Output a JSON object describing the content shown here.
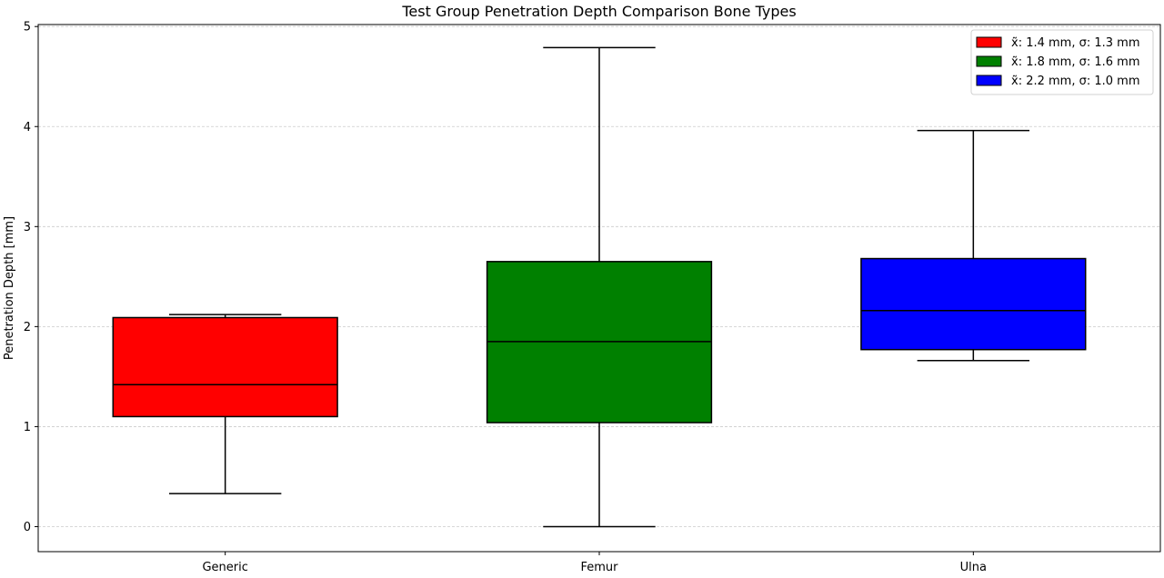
{
  "chart_data": {
    "type": "box",
    "title": "Test Group Penetration Depth Comparison Bone Types",
    "xlabel": "",
    "ylabel": "Penetration Depth [mm]",
    "ylim": [
      -0.25,
      5.02
    ],
    "yticks": [
      0,
      1,
      2,
      3,
      4,
      5
    ],
    "grid": "horizontal dashed",
    "legend_position": "top-right",
    "categories": [
      "Generic",
      "Femur",
      "Ulna"
    ],
    "boxes": [
      {
        "category": "Generic",
        "whisker_low": 0.33,
        "q1": 1.1,
        "median": 1.42,
        "q3": 2.09,
        "whisker_high": 2.12,
        "color": "#ff0000",
        "legend": "x̃: 1.4 mm, σ: 1.3 mm"
      },
      {
        "category": "Femur",
        "whisker_low": 0.0,
        "q1": 1.04,
        "median": 1.85,
        "q3": 2.65,
        "whisker_high": 4.79,
        "color": "#008000",
        "legend": "x̃: 1.8 mm, σ: 1.6 mm"
      },
      {
        "category": "Ulna",
        "whisker_low": 1.66,
        "q1": 1.77,
        "median": 2.16,
        "q3": 2.68,
        "whisker_high": 3.96,
        "color": "#0000ff",
        "legend": "x̃: 2.2 mm, σ: 1.0 mm"
      }
    ]
  }
}
